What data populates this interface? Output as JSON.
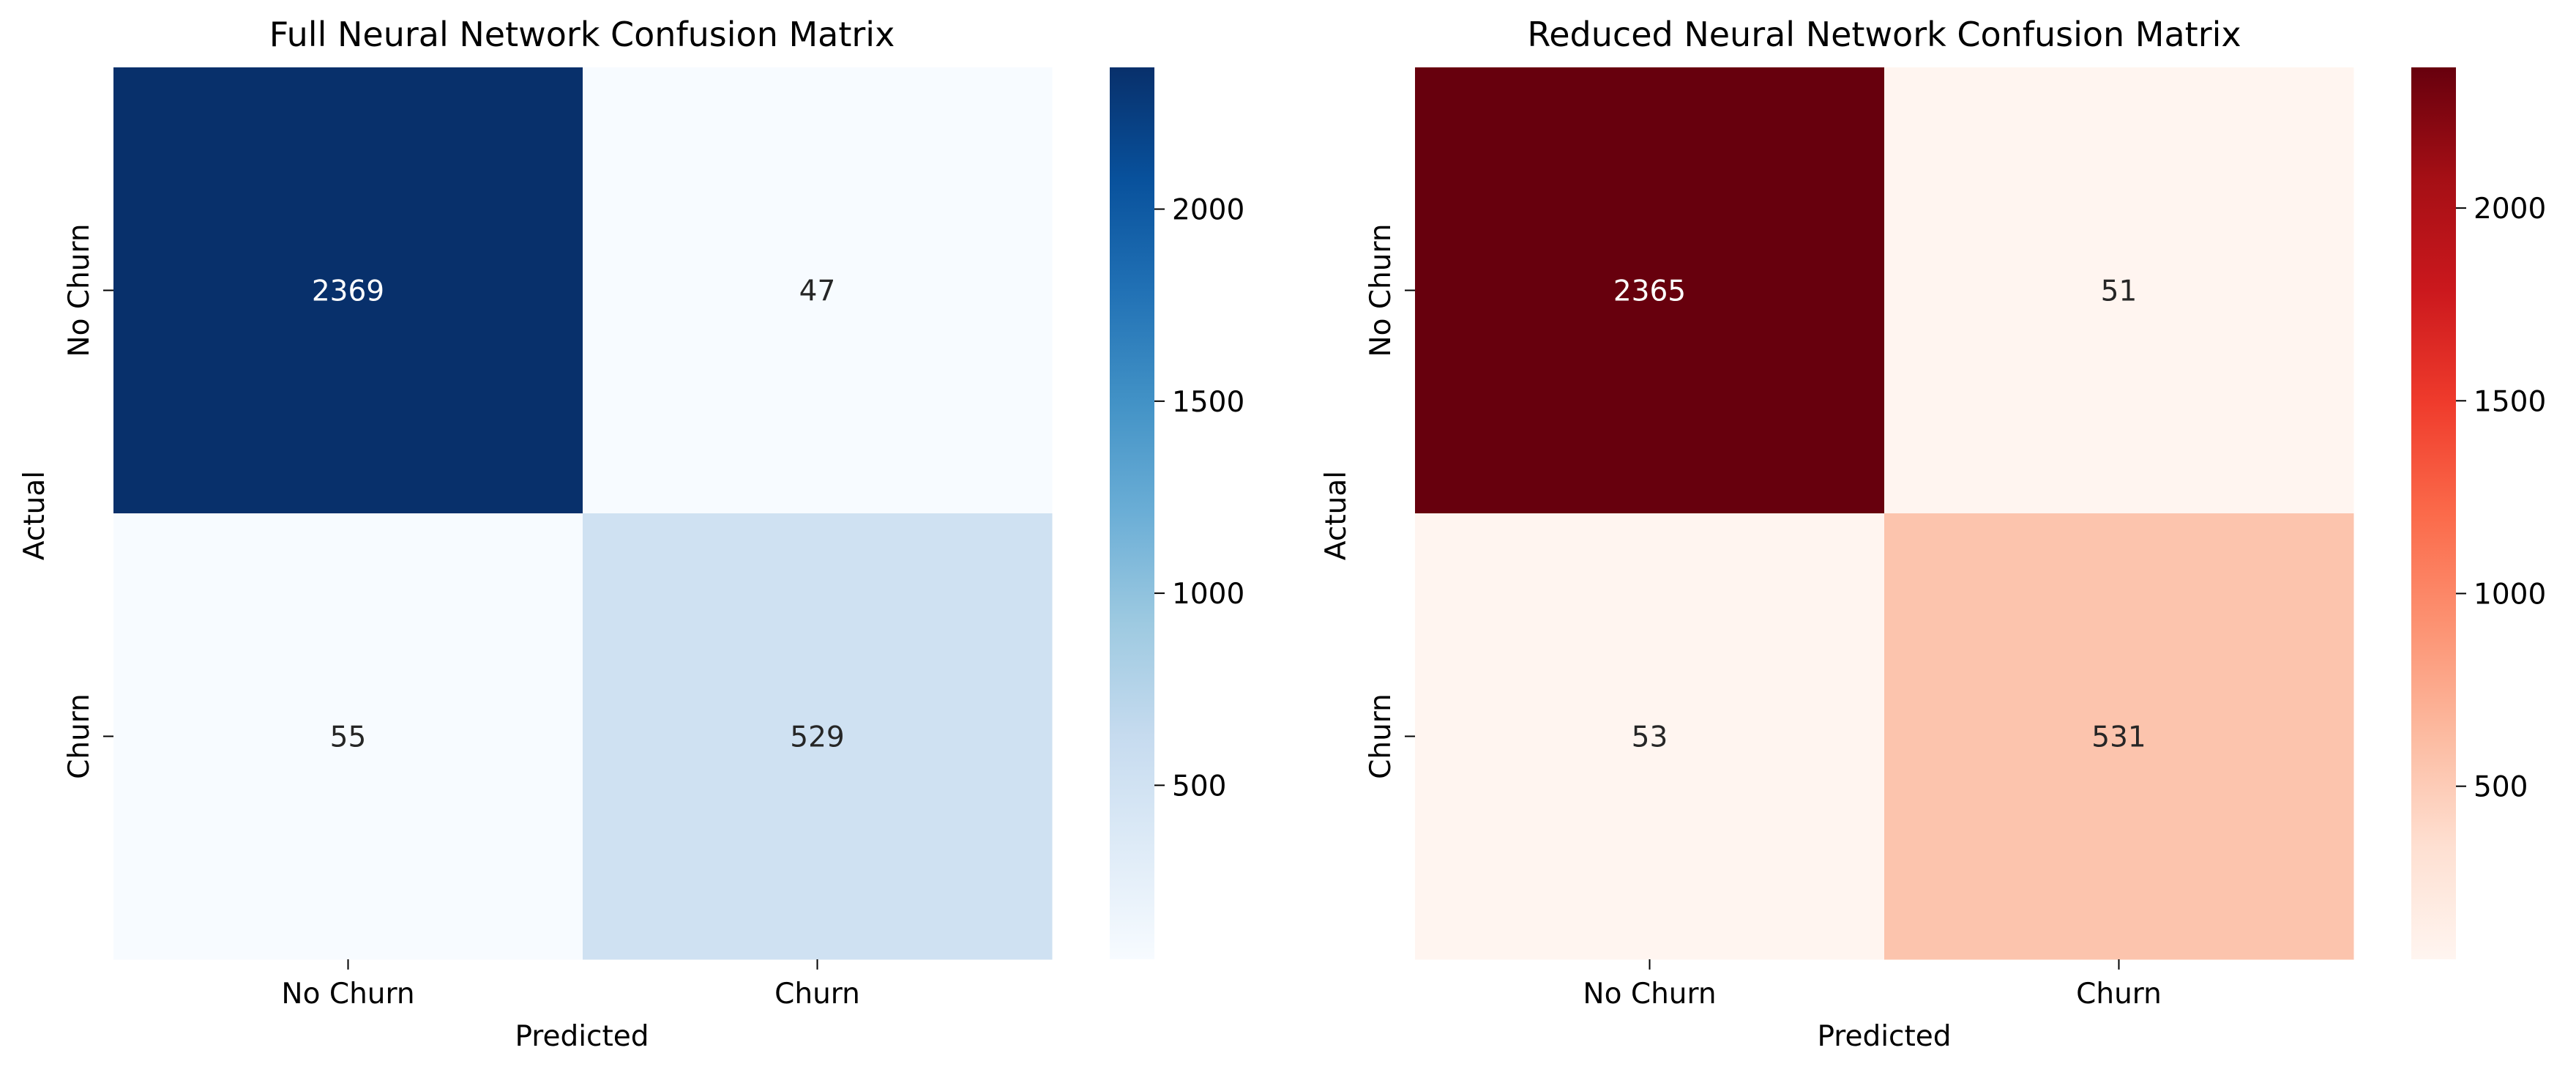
{
  "chart_data": [
    {
      "type": "heatmap",
      "title": "Full Neural Network Confusion Matrix",
      "xlabel": "Predicted",
      "ylabel": "Actual",
      "x_categories": [
        "No Churn",
        "Churn"
      ],
      "y_categories": [
        "No Churn",
        "Churn"
      ],
      "values": [
        [
          2369,
          47
        ],
        [
          55,
          529
        ]
      ],
      "colormap": "Blues",
      "cell_colors": [
        [
          "#08306b",
          "#f7fbff"
        ],
        [
          "#f7fbff",
          "#cfe1f2"
        ]
      ],
      "vmin": 47,
      "vmax": 2369,
      "colorbar_ticks": [
        500,
        1000,
        1500,
        2000
      ],
      "colorbar_tick_labels": [
        "500",
        "1000",
        "1500",
        "2000"
      ],
      "colorbar_stops": [
        "#f7fbff",
        "#deebf7",
        "#c6dbef",
        "#9ecae1",
        "#6baed6",
        "#4292c6",
        "#2171b5",
        "#08519c",
        "#08306b"
      ]
    },
    {
      "type": "heatmap",
      "title": "Reduced Neural Network Confusion Matrix",
      "xlabel": "Predicted",
      "ylabel": "Actual",
      "x_categories": [
        "No Churn",
        "Churn"
      ],
      "y_categories": [
        "No Churn",
        "Churn"
      ],
      "values": [
        [
          2365,
          51
        ],
        [
          53,
          531
        ]
      ],
      "colormap": "Reds",
      "cell_colors": [
        [
          "#67000d",
          "#fff5f0"
        ],
        [
          "#fff5f0",
          "#fcc4ad"
        ]
      ],
      "vmin": 51,
      "vmax": 2365,
      "colorbar_ticks": [
        500,
        1000,
        1500,
        2000
      ],
      "colorbar_tick_labels": [
        "500",
        "1000",
        "1500",
        "2000"
      ],
      "colorbar_stops": [
        "#fff5f0",
        "#fee0d2",
        "#fcbba1",
        "#fc9272",
        "#fb6a4a",
        "#ef3b2c",
        "#cb181d",
        "#a50f15",
        "#67000d"
      ]
    }
  ]
}
